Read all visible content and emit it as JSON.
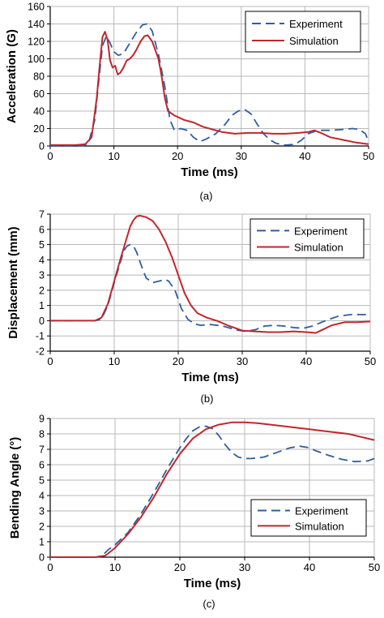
{
  "colors": {
    "experiment": "#2f5f9e",
    "simulation": "#c0272d",
    "grid": "#b8b8b8",
    "axis": "#000000"
  },
  "chart_data": [
    {
      "type": "line",
      "panel_label": "(a)",
      "xlabel": "Time (ms)",
      "ylabel": "Acceleration (G)",
      "xlim": [
        0,
        50
      ],
      "ylim": [
        0,
        160
      ],
      "xticks": [
        0,
        10,
        20,
        30,
        40,
        50
      ],
      "yticks": [
        0,
        20,
        40,
        60,
        80,
        100,
        120,
        140,
        160
      ],
      "grid": true,
      "legend_position": "top-right",
      "series": [
        {
          "name": "Experiment",
          "style": "dashed",
          "points": [
            [
              0,
              0
            ],
            [
              5,
              0
            ],
            [
              6,
              3
            ],
            [
              7,
              30
            ],
            [
              7.7,
              80
            ],
            [
              8.2,
              115
            ],
            [
              8.8,
              126
            ],
            [
              9.4,
              118
            ],
            [
              10,
              108
            ],
            [
              10.7,
              104
            ],
            [
              11.5,
              106
            ],
            [
              12.5,
              118
            ],
            [
              13.5,
              130
            ],
            [
              14.5,
              139
            ],
            [
              15.2,
              140
            ],
            [
              16,
              132
            ],
            [
              17,
              105
            ],
            [
              18,
              68
            ],
            [
              18.8,
              30
            ],
            [
              19.5,
              18
            ],
            [
              20.5,
              20
            ],
            [
              21.5,
              18
            ],
            [
              22.5,
              10
            ],
            [
              23.5,
              5
            ],
            [
              24.5,
              8
            ],
            [
              26,
              14
            ],
            [
              27.5,
              25
            ],
            [
              28.5,
              35
            ],
            [
              29.5,
              40
            ],
            [
              30.5,
              42
            ],
            [
              31.5,
              37
            ],
            [
              32.5,
              25
            ],
            [
              33.5,
              14
            ],
            [
              34.5,
              7
            ],
            [
              35.5,
              3
            ],
            [
              37,
              1
            ],
            [
              38.5,
              2
            ],
            [
              39.5,
              7
            ],
            [
              40.5,
              14
            ],
            [
              42,
              18
            ],
            [
              44,
              18
            ],
            [
              46,
              19
            ],
            [
              47.5,
              20
            ],
            [
              48.5,
              19
            ],
            [
              49.5,
              14
            ],
            [
              50,
              5
            ]
          ]
        },
        {
          "name": "Simulation",
          "style": "solid",
          "points": [
            [
              0,
              1
            ],
            [
              4,
              1
            ],
            [
              5.5,
              2
            ],
            [
              6.5,
              10
            ],
            [
              7.3,
              55
            ],
            [
              7.8,
              95
            ],
            [
              8.2,
              125
            ],
            [
              8.6,
              131
            ],
            [
              9.0,
              122
            ],
            [
              9.4,
              98
            ],
            [
              9.8,
              90
            ],
            [
              10.2,
              92
            ],
            [
              10.6,
              82
            ],
            [
              11,
              84
            ],
            [
              11.5,
              90
            ],
            [
              12,
              98
            ],
            [
              12.5,
              100
            ],
            [
              13,
              104
            ],
            [
              13.5,
              110
            ],
            [
              14.2,
              120
            ],
            [
              14.8,
              126
            ],
            [
              15.3,
              127
            ],
            [
              16,
              120
            ],
            [
              16.5,
              110
            ],
            [
              17,
              100
            ],
            [
              17.5,
              80
            ],
            [
              18,
              55
            ],
            [
              18.5,
              40
            ],
            [
              19.5,
              35
            ],
            [
              21,
              30
            ],
            [
              22.5,
              27
            ],
            [
              24,
              22
            ],
            [
              25.5,
              19
            ],
            [
              27,
              16
            ],
            [
              29,
              14
            ],
            [
              31,
              15
            ],
            [
              33,
              15
            ],
            [
              35,
              14
            ],
            [
              37,
              14
            ],
            [
              39,
              15
            ],
            [
              40.5,
              16
            ],
            [
              41.5,
              18
            ],
            [
              42.5,
              15
            ],
            [
              44,
              10
            ],
            [
              46,
              7
            ],
            [
              48,
              4
            ],
            [
              50,
              2
            ]
          ]
        }
      ]
    },
    {
      "type": "line",
      "panel_label": "(b)",
      "xlabel": "Time (ms)",
      "ylabel": "Displacement (mm)",
      "xlim": [
        0,
        50
      ],
      "ylim": [
        -2,
        7
      ],
      "xticks": [
        0,
        10,
        20,
        30,
        40,
        50
      ],
      "yticks": [
        -2,
        -1,
        0,
        1,
        2,
        3,
        4,
        5,
        6,
        7
      ],
      "grid": true,
      "legend_position": "top-right",
      "series": [
        {
          "name": "Experiment",
          "style": "dashed",
          "points": [
            [
              0,
              0
            ],
            [
              7,
              0
            ],
            [
              8,
              0.1
            ],
            [
              9,
              1
            ],
            [
              10,
              2.5
            ],
            [
              11,
              3.9
            ],
            [
              11.5,
              4.6
            ],
            [
              12,
              4.9
            ],
            [
              12.5,
              5.0
            ],
            [
              13,
              4.9
            ],
            [
              13.5,
              4.5
            ],
            [
              14,
              3.9
            ],
            [
              14.5,
              3.3
            ],
            [
              15,
              2.8
            ],
            [
              16,
              2.5
            ],
            [
              17,
              2.6
            ],
            [
              18,
              2.7
            ],
            [
              18.5,
              2.6
            ],
            [
              19.5,
              2.0
            ],
            [
              20.5,
              0.8
            ],
            [
              21.5,
              0.1
            ],
            [
              22.5,
              -0.2
            ],
            [
              23.5,
              -0.3
            ],
            [
              25,
              -0.25
            ],
            [
              27,
              -0.35
            ],
            [
              29,
              -0.6
            ],
            [
              30.5,
              -0.7
            ],
            [
              32,
              -0.6
            ],
            [
              33.5,
              -0.35
            ],
            [
              35,
              -0.3
            ],
            [
              36.5,
              -0.35
            ],
            [
              38,
              -0.45
            ],
            [
              39.5,
              -0.5
            ],
            [
              41,
              -0.35
            ],
            [
              43,
              0
            ],
            [
              45,
              0.3
            ],
            [
              47,
              0.4
            ],
            [
              49,
              0.4
            ],
            [
              50,
              0.4
            ]
          ]
        },
        {
          "name": "Simulation",
          "style": "solid",
          "points": [
            [
              0,
              0
            ],
            [
              7,
              0
            ],
            [
              8,
              0.2
            ],
            [
              9,
              1.1
            ],
            [
              10,
              2.6
            ],
            [
              11,
              4.1
            ],
            [
              12,
              5.5
            ],
            [
              12.5,
              6.2
            ],
            [
              13,
              6.6
            ],
            [
              13.5,
              6.85
            ],
            [
              14,
              6.9
            ],
            [
              15,
              6.8
            ],
            [
              16,
              6.55
            ],
            [
              17,
              6.0
            ],
            [
              18,
              5.2
            ],
            [
              19,
              4.2
            ],
            [
              20,
              3.0
            ],
            [
              21,
              1.8
            ],
            [
              22,
              1.0
            ],
            [
              23,
              0.5
            ],
            [
              24.5,
              0.2
            ],
            [
              26,
              0.0
            ],
            [
              28,
              -0.35
            ],
            [
              30,
              -0.65
            ],
            [
              32,
              -0.7
            ],
            [
              34,
              -0.75
            ],
            [
              36,
              -0.75
            ],
            [
              38,
              -0.7
            ],
            [
              40,
              -0.75
            ],
            [
              41.5,
              -0.8
            ],
            [
              42.5,
              -0.6
            ],
            [
              44,
              -0.3
            ],
            [
              46,
              -0.1
            ],
            [
              48,
              -0.1
            ],
            [
              50,
              -0.05
            ]
          ]
        }
      ]
    },
    {
      "type": "line",
      "panel_label": "(c)",
      "xlabel": "Time (ms)",
      "ylabel": "Bending Angle (°)",
      "xlim": [
        0,
        50
      ],
      "ylim": [
        0,
        9
      ],
      "xticks": [
        0,
        10,
        20,
        30,
        40,
        50
      ],
      "yticks": [
        0,
        1,
        2,
        3,
        4,
        5,
        6,
        7,
        8,
        9
      ],
      "grid": true,
      "legend_position": "center-right",
      "series": [
        {
          "name": "Experiment",
          "style": "dashed",
          "points": [
            [
              0,
              0
            ],
            [
              7,
              0
            ],
            [
              8,
              0.1
            ],
            [
              9,
              0.5
            ],
            [
              10,
              0.8
            ],
            [
              12,
              1.6
            ],
            [
              14,
              2.8
            ],
            [
              16,
              4.2
            ],
            [
              18,
              5.7
            ],
            [
              20,
              7.1
            ],
            [
              21,
              7.7
            ],
            [
              22,
              8.2
            ],
            [
              23,
              8.45
            ],
            [
              24,
              8.5
            ],
            [
              25,
              8.35
            ],
            [
              26,
              7.9
            ],
            [
              27,
              7.3
            ],
            [
              28,
              6.8
            ],
            [
              29,
              6.5
            ],
            [
              30,
              6.4
            ],
            [
              31,
              6.4
            ],
            [
              33,
              6.5
            ],
            [
              35,
              6.8
            ],
            [
              37,
              7.1
            ],
            [
              38.5,
              7.2
            ],
            [
              40,
              7.1
            ],
            [
              41,
              6.9
            ],
            [
              43,
              6.6
            ],
            [
              45,
              6.35
            ],
            [
              47,
              6.2
            ],
            [
              49,
              6.25
            ],
            [
              50,
              6.4
            ]
          ]
        },
        {
          "name": "Simulation",
          "style": "solid",
          "points": [
            [
              0,
              0
            ],
            [
              7,
              0
            ],
            [
              8.5,
              0.1
            ],
            [
              10,
              0.6
            ],
            [
              12,
              1.5
            ],
            [
              14,
              2.6
            ],
            [
              16,
              3.9
            ],
            [
              18,
              5.4
            ],
            [
              20,
              6.7
            ],
            [
              22,
              7.7
            ],
            [
              24,
              8.3
            ],
            [
              26,
              8.6
            ],
            [
              28,
              8.75
            ],
            [
              30,
              8.75
            ],
            [
              32,
              8.7
            ],
            [
              34,
              8.6
            ],
            [
              36,
              8.5
            ],
            [
              38,
              8.4
            ],
            [
              40,
              8.3
            ],
            [
              42,
              8.2
            ],
            [
              44,
              8.1
            ],
            [
              46,
              8.0
            ],
            [
              48,
              7.8
            ],
            [
              50,
              7.6
            ]
          ]
        }
      ]
    }
  ]
}
